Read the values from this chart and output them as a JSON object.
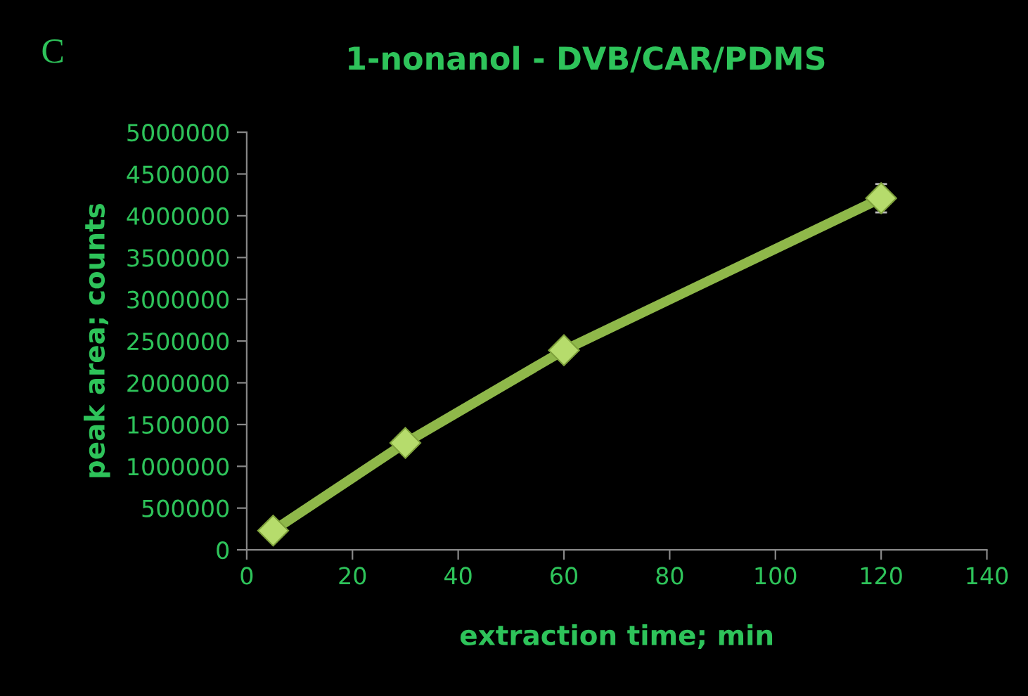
{
  "chart_data": {
    "type": "line",
    "title": "1-nonanol - DVB/CAR/PDMS",
    "xlabel": "extraction time; min",
    "ylabel": "peak area; counts",
    "annotations": [
      "C"
    ],
    "x": [
      5,
      30,
      60,
      120
    ],
    "series": [
      {
        "color": "#8fb84a",
        "values": [
          230000,
          1280000,
          2390000,
          4210000
        ],
        "errors": [
          null,
          null,
          null,
          170000
        ]
      }
    ],
    "xlim": [
      0,
      140
    ],
    "xticks": [
      0,
      20,
      40,
      60,
      80,
      100,
      120,
      140
    ],
    "ylim": [
      0,
      5000000
    ],
    "yticks": [
      0,
      500000,
      1000000,
      1500000,
      2000000,
      2500000,
      3000000,
      3500000,
      4000000,
      4500000,
      5000000
    ],
    "marker": "diamond",
    "line_style": "solid",
    "grid": false,
    "legend": false
  }
}
